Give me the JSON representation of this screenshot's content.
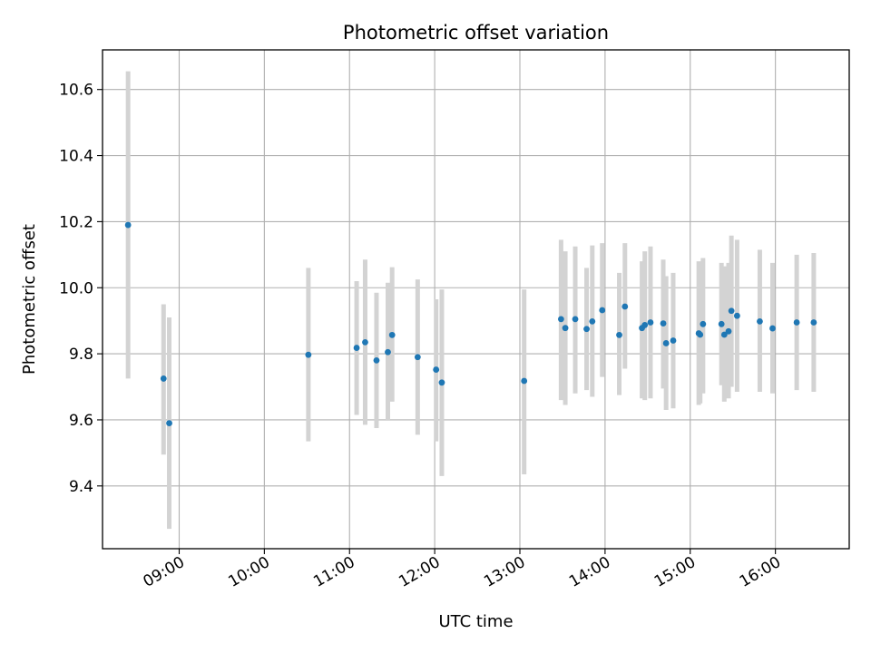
{
  "chart_data": {
    "type": "scatter",
    "title": "Photometric offset variation",
    "xlabel": "UTC time",
    "ylabel": "Photometric offset",
    "x_kind": "time",
    "xlim": [
      "08:06",
      "16:52"
    ],
    "ylim": [
      9.21,
      10.72
    ],
    "x_ticks": [
      "09:00",
      "10:00",
      "11:00",
      "12:00",
      "13:00",
      "14:00",
      "15:00",
      "16:00"
    ],
    "y_ticks": [
      "9.4",
      "9.6",
      "9.8",
      "10.0",
      "10.2",
      "10.4",
      "10.6"
    ],
    "y_tick_values": [
      9.4,
      9.6,
      9.8,
      10.0,
      10.2,
      10.4,
      10.6
    ],
    "grid": true,
    "legend": "none",
    "colors": {
      "point": "#1f77b4",
      "errorbar": "#d3d3d3",
      "grid": "#b0b0b0"
    },
    "points": [
      {
        "t": "08:24",
        "y": 10.19,
        "low": 9.725,
        "high": 10.655
      },
      {
        "t": "08:49",
        "y": 9.725,
        "low": 9.495,
        "high": 9.95
      },
      {
        "t": "08:53",
        "y": 9.59,
        "low": 9.27,
        "high": 9.91
      },
      {
        "t": "10:31",
        "y": 9.797,
        "low": 9.535,
        "high": 10.06
      },
      {
        "t": "11:05",
        "y": 9.818,
        "low": 9.615,
        "high": 10.02
      },
      {
        "t": "11:11",
        "y": 9.835,
        "low": 9.585,
        "high": 10.085
      },
      {
        "t": "11:19",
        "y": 9.78,
        "low": 9.575,
        "high": 9.985
      },
      {
        "t": "11:27",
        "y": 9.805,
        "low": 9.6,
        "high": 10.015
      },
      {
        "t": "11:30",
        "y": 9.857,
        "low": 9.655,
        "high": 10.062
      },
      {
        "t": "11:48",
        "y": 9.79,
        "low": 9.555,
        "high": 10.025
      },
      {
        "t": "12:01",
        "y": 9.752,
        "low": 9.535,
        "high": 9.965
      },
      {
        "t": "12:05",
        "y": 9.713,
        "low": 9.43,
        "high": 9.995
      },
      {
        "t": "13:03",
        "y": 9.718,
        "low": 9.435,
        "high": 9.995
      },
      {
        "t": "13:29",
        "y": 9.905,
        "low": 9.66,
        "high": 10.145
      },
      {
        "t": "13:32",
        "y": 9.878,
        "low": 9.645,
        "high": 10.11
      },
      {
        "t": "13:39",
        "y": 9.905,
        "low": 9.68,
        "high": 10.125
      },
      {
        "t": "13:47",
        "y": 9.875,
        "low": 9.69,
        "high": 10.06
      },
      {
        "t": "13:51",
        "y": 9.898,
        "low": 9.67,
        "high": 10.128
      },
      {
        "t": "13:58",
        "y": 9.932,
        "low": 9.73,
        "high": 10.135
      },
      {
        "t": "14:10",
        "y": 9.857,
        "low": 9.675,
        "high": 10.045
      },
      {
        "t": "14:14",
        "y": 9.943,
        "low": 9.755,
        "high": 10.135
      },
      {
        "t": "14:26",
        "y": 9.878,
        "low": 9.665,
        "high": 10.08
      },
      {
        "t": "14:28",
        "y": 9.887,
        "low": 9.66,
        "high": 10.11
      },
      {
        "t": "14:32",
        "y": 9.895,
        "low": 9.665,
        "high": 10.125
      },
      {
        "t": "14:41",
        "y": 9.892,
        "low": 9.695,
        "high": 10.085
      },
      {
        "t": "14:43",
        "y": 9.832,
        "low": 9.63,
        "high": 10.035
      },
      {
        "t": "14:48",
        "y": 9.84,
        "low": 9.635,
        "high": 10.045
      },
      {
        "t": "15:06",
        "y": 9.862,
        "low": 9.645,
        "high": 10.08
      },
      {
        "t": "15:07",
        "y": 9.858,
        "low": 9.65,
        "high": 10.07
      },
      {
        "t": "15:09",
        "y": 9.89,
        "low": 9.68,
        "high": 10.09
      },
      {
        "t": "15:22",
        "y": 9.89,
        "low": 9.705,
        "high": 10.075
      },
      {
        "t": "15:24",
        "y": 9.858,
        "low": 9.655,
        "high": 10.065
      },
      {
        "t": "15:27",
        "y": 9.868,
        "low": 9.665,
        "high": 10.075
      },
      {
        "t": "15:29",
        "y": 9.93,
        "low": 9.7,
        "high": 10.158
      },
      {
        "t": "15:33",
        "y": 9.915,
        "low": 9.685,
        "high": 10.145
      },
      {
        "t": "15:49",
        "y": 9.898,
        "low": 9.685,
        "high": 10.115
      },
      {
        "t": "15:58",
        "y": 9.877,
        "low": 9.68,
        "high": 10.075
      },
      {
        "t": "16:15",
        "y": 9.895,
        "low": 9.69,
        "high": 10.1
      },
      {
        "t": "16:27",
        "y": 9.895,
        "low": 9.685,
        "high": 10.105
      }
    ]
  }
}
